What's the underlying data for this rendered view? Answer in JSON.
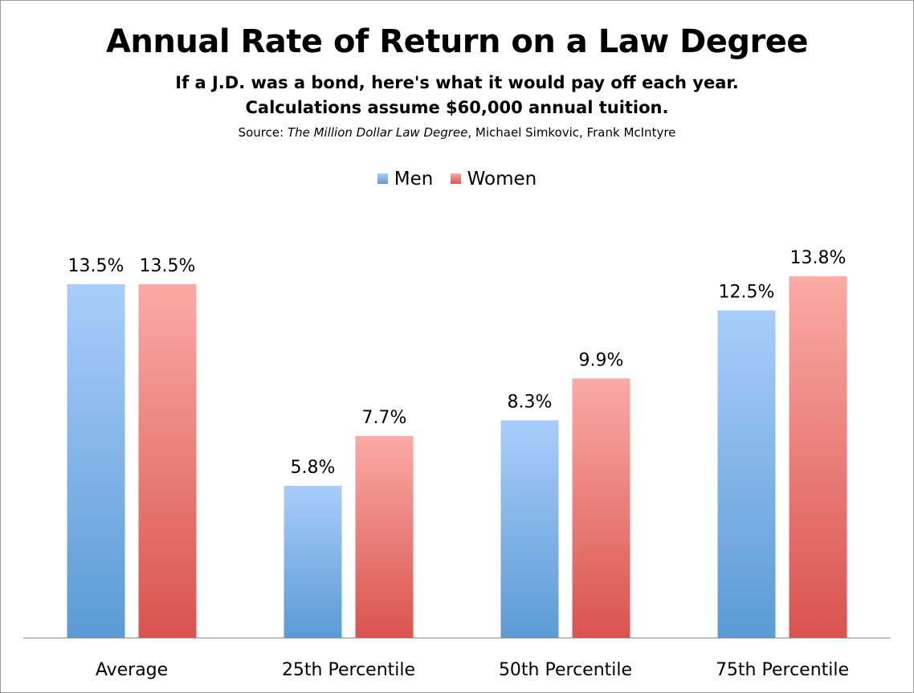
{
  "chart_data": {
    "type": "bar",
    "title": "Annual Rate of Return on a Law Degree",
    "subtitle_lines": [
      "If a J.D. was a bond, here's what it would pay off each year.",
      "Calculations assume $60,000 annual tuition."
    ],
    "source": {
      "prefix": "Source: ",
      "title": "The Million Dollar Law Degree",
      "suffix": ", Michael Simkovic, Frank McIntyre"
    },
    "categories": [
      "Average",
      "25th Percentile",
      "50th Percentile",
      "75th Percentile"
    ],
    "series": [
      {
        "name": "Men",
        "values": [
          13.5,
          5.8,
          8.3,
          12.5
        ],
        "labels": [
          "13.5%",
          "5.8%",
          "8.3%",
          "12.5%"
        ],
        "color": "#5b9bd5",
        "color_light": "#a9cdfb"
      },
      {
        "name": "Women",
        "values": [
          13.5,
          7.7,
          9.9,
          13.8
        ],
        "labels": [
          "13.5%",
          "7.7%",
          "9.9%",
          "13.8%"
        ],
        "color": "#d9534f",
        "color_light": "#fbaaa4"
      }
    ],
    "ylim": [
      0,
      16
    ],
    "legend_position": "top-center",
    "grid": false
  }
}
